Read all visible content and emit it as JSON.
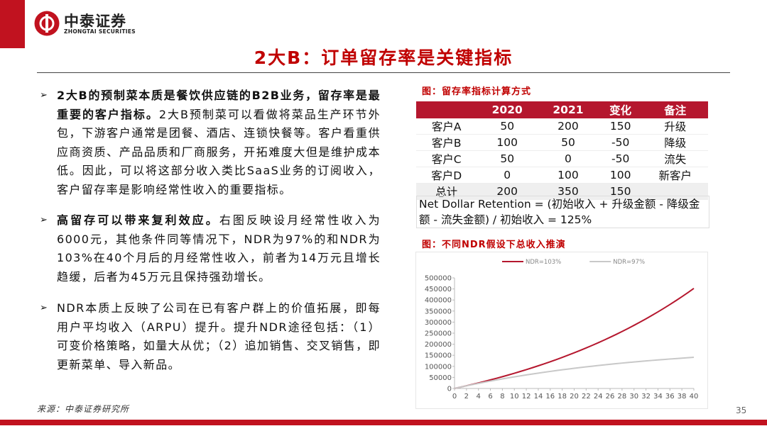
{
  "header": {
    "logo_name": "中泰证券",
    "logo_subtitle": "ZHONGTAI SECURITIES"
  },
  "title": "2大B：订单留存率是关键指标",
  "bullets": [
    {
      "bold": "2大B的预制菜本质是餐饮供应链的B2B业务，留存率是最重要的客户指标。",
      "text": "2大B预制菜可以看做将菜品生产环节外包，下游客户通常是团餐、酒店、连锁快餐等。客户看重供应商资质、产品品质和厂商服务，开拓难度大但是维护成本低。因此，可以将这部分收入类比SaaS业务的订阅收入，客户留存率是影响经常性收入的重要指标。"
    },
    {
      "bold": "高留存可以带来复利效应。",
      "text": "右图反映设月经常性收入为6000元，其他条件同等情况下，NDR为97%的和NDR为103%在40个月后的月经常性收入，前者为14万元且增长趋缓，后者为45万元且保持强劲增长。"
    },
    {
      "text": "NDR本质上反映了公司在已有客户群上的价值拓展，即每用户平均收入（ARPU）提升。提升NDR途径包括：（1）可变价格策略，如量大从优；（2）追加销售、交叉销售，即更新菜单、导入新品。"
    }
  ],
  "table": {
    "caption": "图：留存率指标计算方式",
    "columns": [
      "2020",
      "2021",
      "变化",
      "备注"
    ],
    "rows": [
      [
        "客户A",
        "50",
        "200",
        "150",
        "升级"
      ],
      [
        "客户B",
        "100",
        "50",
        "-50",
        "降级"
      ],
      [
        "客户C",
        "50",
        "0",
        "-50",
        "流失"
      ],
      [
        "客户D",
        "0",
        "100",
        "100",
        "新客户"
      ]
    ],
    "total": [
      "总计",
      "200",
      "350",
      "150"
    ],
    "formula": "Net Dollar Retention = (初始收入 + 升级金额 - 降级金额 - 流失金额) / 初始收入 = 125%"
  },
  "chart_data": {
    "type": "line",
    "title": "图：不同NDR假设下总收入推演",
    "x": [
      0,
      1,
      2,
      3,
      4,
      5,
      6,
      7,
      8,
      9,
      10,
      11,
      12,
      13,
      14,
      15,
      16,
      17,
      18,
      19,
      20,
      21,
      22,
      23,
      24,
      25,
      26,
      27,
      28,
      29,
      30,
      31,
      32,
      33,
      34,
      35,
      36,
      37,
      38,
      39,
      40
    ],
    "series": [
      {
        "name": "NDR=103%",
        "color": "#b5172e",
        "values": [
          0,
          6000,
          12180,
          18545,
          25102,
          31855,
          38810,
          45975,
          53354,
          60955,
          68783,
          76847,
          85152,
          93707,
          102518,
          111593,
          120941,
          130570,
          140487,
          150701,
          161222,
          172059,
          183221,
          194717,
          206559,
          218756,
          231318,
          244258,
          257586,
          271313,
          285452,
          300016,
          315017,
          330467,
          346381,
          362772,
          379656,
          397045,
          414957,
          433405,
          452408
        ]
      },
      {
        "name": "NDR=97%",
        "color": "#c8c8c8",
        "values": [
          0,
          6000,
          11820,
          17465,
          22941,
          28253,
          33406,
          38403,
          43251,
          47954,
          52515,
          56940,
          61232,
          65395,
          69433,
          73350,
          77149,
          80835,
          84410,
          87877,
          91241,
          94504,
          97669,
          100739,
          103717,
          106605,
          109407,
          112125,
          114761,
          117318,
          119799,
          122205,
          124539,
          126802,
          128998,
          131128,
          133195,
          135199,
          137143,
          139028,
          140858
        ]
      }
    ],
    "xlim": [
      0,
      40
    ],
    "xticks": [
      0,
      2,
      4,
      6,
      8,
      10,
      12,
      14,
      16,
      18,
      20,
      22,
      24,
      26,
      28,
      30,
      32,
      34,
      36,
      38,
      40
    ],
    "ylim": [
      0,
      500000
    ],
    "yticks": [
      0,
      50000,
      100000,
      150000,
      200000,
      250000,
      300000,
      350000,
      400000,
      450000,
      500000
    ],
    "grid": false,
    "legend": "top"
  },
  "footer": {
    "source": "来源：中泰证券研究所",
    "page": "35"
  }
}
